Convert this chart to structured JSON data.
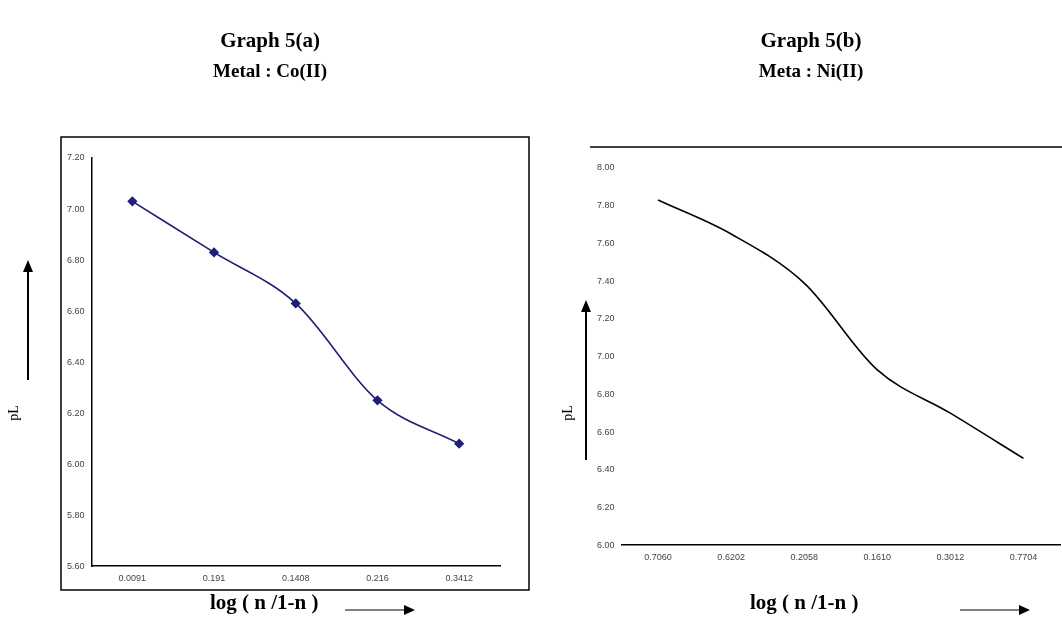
{
  "chart_data": [
    {
      "type": "line",
      "title": "Graph 5(a)",
      "subtitle": "Metal : Co(II)",
      "xlabel": "log ( n /1-n )",
      "ylabel": "pL",
      "categories": [
        "0.0091",
        "0.191",
        "0.1408",
        "0.216",
        "0.3412"
      ],
      "series": [
        {
          "color": "#1f1f7a",
          "values": [
            7.03,
            6.83,
            6.63,
            6.25,
            6.08
          ]
        }
      ],
      "marker": "diamond",
      "line_style": "solid",
      "grid": false,
      "legend": false,
      "ylim": [
        5.6,
        7.2
      ],
      "yticks": [
        {
          "value": 5.6,
          "label": "5.60"
        },
        {
          "value": 5.8,
          "label": "5.80"
        },
        {
          "value": 6.0,
          "label": "6.00"
        },
        {
          "value": 6.2,
          "label": "6.20"
        },
        {
          "value": 6.4,
          "label": "6.40"
        },
        {
          "value": 6.6,
          "label": "6.60"
        },
        {
          "value": 6.8,
          "label": "6.80"
        },
        {
          "value": 7.0,
          "label": "7.00"
        },
        {
          "value": 7.2,
          "label": "7.20"
        }
      ]
    },
    {
      "type": "line",
      "title": "Graph 5(b)",
      "subtitle": "Meta : Ni(II)",
      "xlabel": "log ( n /1-n )",
      "ylabel": "pL",
      "categories": [
        "0.7060",
        "0.6202",
        "0.2058",
        "0.1610",
        "0.3012",
        "0.7704"
      ],
      "series": [
        {
          "color": "#000000",
          "values": [
            7.83,
            7.65,
            7.39,
            6.93,
            6.7,
            6.46
          ]
        }
      ],
      "marker": "none",
      "line_style": "solid",
      "grid": false,
      "legend": false,
      "ylim": [
        6.0,
        8.0
      ],
      "yticks": [
        {
          "value": 6.0,
          "label": "6.00"
        },
        {
          "value": 6.2,
          "label": "6.20"
        },
        {
          "value": 6.4,
          "label": "6.40"
        },
        {
          "value": 6.6,
          "label": "6.60"
        },
        {
          "value": 6.8,
          "label": "6.80"
        },
        {
          "value": 7.0,
          "label": "7.00"
        },
        {
          "value": 7.2,
          "label": "7.20"
        },
        {
          "value": 7.4,
          "label": "7.40"
        },
        {
          "value": 7.6,
          "label": "7.60"
        },
        {
          "value": 7.8,
          "label": "7.80"
        },
        {
          "value": 8.0,
          "label": "8.00"
        }
      ]
    }
  ]
}
